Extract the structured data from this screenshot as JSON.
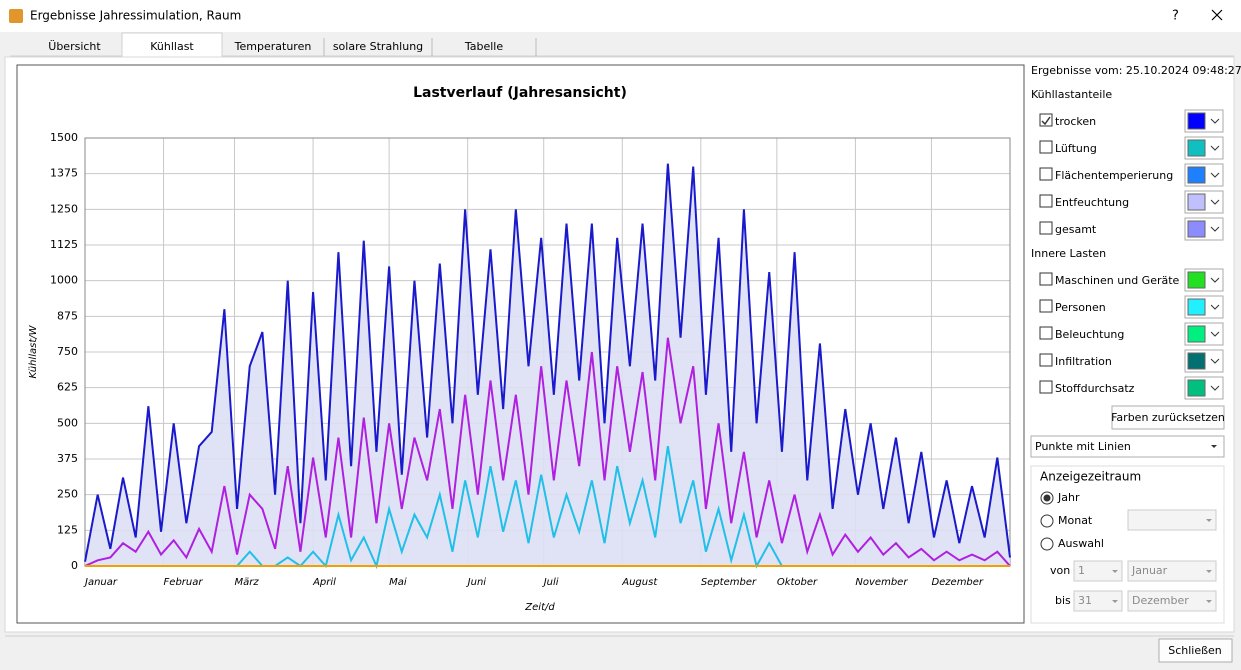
{
  "window": {
    "title": "Ergebnisse Jahressimulation, Raum",
    "help": "?"
  },
  "tabs": {
    "items": [
      "Übersicht",
      "Kühllast",
      "Temperaturen",
      "solare Strahlung",
      "Tabelle"
    ],
    "active": 1
  },
  "chart_data": {
    "type": "line",
    "title": "Lastverlauf (Jahresansicht)",
    "x_label": "Zeit/d",
    "y_label": "Kühllast/W",
    "x": [
      0,
      5,
      10,
      15,
      20,
      25,
      30,
      35,
      40,
      45,
      50,
      55,
      60,
      65,
      70,
      75,
      80,
      85,
      90,
      95,
      100,
      105,
      110,
      115,
      120,
      125,
      130,
      135,
      140,
      145,
      150,
      155,
      160,
      165,
      170,
      175,
      180,
      185,
      190,
      195,
      200,
      205,
      210,
      215,
      220,
      225,
      230,
      235,
      240,
      245,
      250,
      255,
      260,
      265,
      270,
      275,
      280,
      285,
      290,
      295,
      300,
      305,
      310,
      315,
      320,
      325,
      330,
      335,
      340,
      345,
      350,
      355,
      360,
      365
    ],
    "series": [
      {
        "name": "trocken",
        "color": "#1a1acc",
        "fill": "#dde0f4",
        "values": [
          15,
          250,
          60,
          310,
          100,
          560,
          120,
          500,
          150,
          420,
          470,
          900,
          200,
          700,
          820,
          250,
          1000,
          150,
          960,
          300,
          1100,
          350,
          1140,
          400,
          1050,
          320,
          1000,
          450,
          1060,
          500,
          1250,
          600,
          1110,
          550,
          1250,
          700,
          1150,
          600,
          1200,
          650,
          1200,
          500,
          1150,
          700,
          1200,
          650,
          1410,
          800,
          1400,
          600,
          1150,
          400,
          1250,
          500,
          1030,
          400,
          1100,
          300,
          780,
          200,
          550,
          250,
          500,
          200,
          450,
          150,
          400,
          100,
          300,
          80,
          280,
          100,
          380,
          30
        ]
      },
      {
        "color": "#b020e0",
        "values": [
          0,
          20,
          30,
          80,
          50,
          120,
          40,
          90,
          30,
          130,
          50,
          280,
          40,
          250,
          200,
          60,
          350,
          50,
          380,
          100,
          450,
          100,
          520,
          150,
          500,
          200,
          450,
          300,
          550,
          200,
          600,
          250,
          650,
          300,
          600,
          250,
          700,
          300,
          650,
          350,
          750,
          300,
          700,
          400,
          680,
          300,
          800,
          500,
          700,
          200,
          500,
          150,
          400,
          100,
          300,
          80,
          250,
          50,
          180,
          40,
          110,
          50,
          100,
          40,
          80,
          30,
          60,
          20,
          50,
          20,
          40,
          20,
          50,
          0
        ]
      },
      {
        "color": "#20c0e8",
        "values": [
          0,
          0,
          0,
          0,
          0,
          0,
          0,
          0,
          0,
          0,
          0,
          0,
          0,
          50,
          0,
          0,
          30,
          0,
          50,
          0,
          180,
          20,
          100,
          0,
          200,
          50,
          180,
          100,
          250,
          50,
          300,
          100,
          350,
          120,
          300,
          80,
          320,
          100,
          250,
          120,
          300,
          80,
          350,
          150,
          300,
          100,
          420,
          150,
          300,
          50,
          200,
          20,
          180,
          0,
          80,
          0,
          0,
          0,
          0,
          0,
          0,
          0,
          0,
          0,
          0,
          0,
          0,
          0,
          0,
          0,
          0,
          0,
          0,
          0
        ]
      }
    ],
    "xlim": [
      0,
      365
    ],
    "xticks": [
      {
        "value": 0,
        "label": "Januar"
      },
      {
        "value": 31,
        "label": "Februar"
      },
      {
        "value": 59,
        "label": "März"
      },
      {
        "value": 90,
        "label": "April"
      },
      {
        "value": 120,
        "label": "Mai"
      },
      {
        "value": 151,
        "label": "Juni"
      },
      {
        "value": 181,
        "label": "Juli"
      },
      {
        "value": 212,
        "label": "August"
      },
      {
        "value": 243,
        "label": "September"
      },
      {
        "value": 273,
        "label": "Oktober"
      },
      {
        "value": 304,
        "label": "November"
      },
      {
        "value": 334,
        "label": "Dezember"
      }
    ],
    "ylim": [
      0,
      1500
    ],
    "yticks": [
      0,
      125,
      250,
      375,
      500,
      625,
      750,
      875,
      1000,
      1125,
      1250,
      1375,
      1500
    ],
    "grid": true
  },
  "panel": {
    "result_date": "Ergebnisse vom: 25.10.2024 09:48:27",
    "group1": {
      "title": "Kühllastanteile",
      "items": [
        {
          "label": "trocken",
          "color": "#0000ff",
          "checked": true
        },
        {
          "label": "Lüftung",
          "color": "#10c0c0",
          "checked": false
        },
        {
          "label": "Flächentemperierung",
          "color": "#1e7fff",
          "checked": false
        },
        {
          "label": "Entfeuchtung",
          "color": "#c0c0ff",
          "checked": false
        },
        {
          "label": "gesamt",
          "color": "#8c8cff",
          "checked": false
        }
      ]
    },
    "group2": {
      "title": "Innere Lasten",
      "items": [
        {
          "label": "Maschinen und Geräte",
          "color": "#22e022",
          "checked": false
        },
        {
          "label": "Personen",
          "color": "#22f0ff",
          "checked": false
        },
        {
          "label": "Beleuchtung",
          "color": "#00f080",
          "checked": false
        },
        {
          "label": "Infiltration",
          "color": "#007070",
          "checked": false
        },
        {
          "label": "Stoffdurchsatz",
          "color": "#00c080",
          "checked": false
        }
      ]
    },
    "reset": "Farben zurücksetzen",
    "mode": "Punkte mit Linien",
    "period": {
      "title": "Anzeigezeitraum",
      "options": [
        "Jahr",
        "Monat",
        "Auswahl"
      ],
      "selected": 0,
      "from_label": "von",
      "from_day": "1",
      "from_month": "Januar",
      "to_label": "bis",
      "to_day": "31",
      "to_month": "Dezember"
    }
  },
  "close_button": "Schließen"
}
